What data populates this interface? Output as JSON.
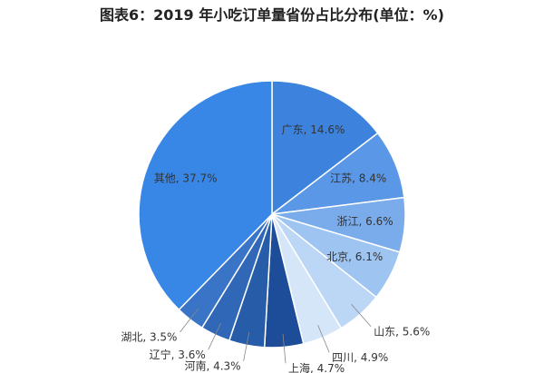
{
  "chart_data": {
    "type": "pie",
    "title": "图表6：2019 年小吃订单量省份占比分布(单位：%)",
    "labels": [
      "广东, 14.6%",
      "江苏, 8.4%",
      "浙江, 6.6%",
      "北京, 6.1%",
      "山东, 5.6%",
      "四川, 4.9%",
      "上海, 4.7%",
      "河南, 4.3%",
      "辽宁, 3.6%",
      "湖北, 3.5%",
      "其他, 37.7%"
    ],
    "values": [
      14.6,
      8.4,
      6.6,
      6.1,
      5.6,
      4.9,
      4.7,
      4.3,
      3.6,
      3.5,
      37.7
    ],
    "colors": [
      "#3d83dd",
      "#5a97e6",
      "#7aaceb",
      "#9ec4f1",
      "#bcd6f5",
      "#d6e6f9",
      "#1d4c98",
      "#275ca9",
      "#3068b7",
      "#3a74c6",
      "#3886e5"
    ]
  }
}
